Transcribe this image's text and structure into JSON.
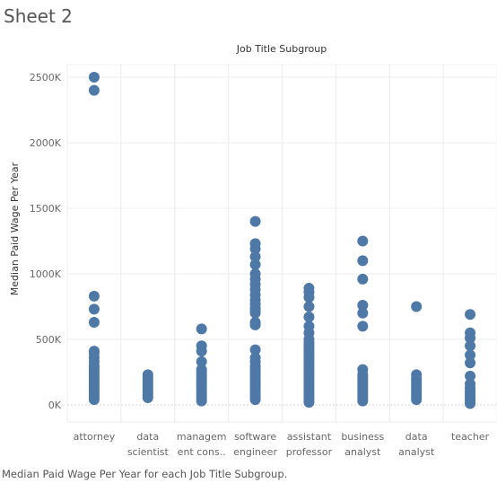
{
  "sheet": {
    "title": "Sheet 2",
    "caption": "Median Paid Wage Per Year for each Job Title Subgroup."
  },
  "chart_data": {
    "type": "scatter",
    "title": "",
    "column_header": "Job Title Subgroup",
    "ylabel": "Median Paid Wage Per Year",
    "ylim": [
      -150000,
      2650000
    ],
    "yticks": [
      0,
      500000,
      1000000,
      1500000,
      2000000,
      2500000
    ],
    "ytick_labels": [
      "0K",
      "500K",
      "1000K",
      "1500K",
      "2000K",
      "2500K"
    ],
    "grid": true,
    "marker_color": "#4e79a7",
    "categories": [
      {
        "label_lines": [
          "attorney"
        ],
        "values": [
          2500000,
          2400000,
          830000,
          730000,
          630000,
          410000,
          390000,
          360000,
          330000,
          300000,
          280000,
          260000,
          240000,
          220000,
          200000,
          180000,
          160000,
          140000,
          120000,
          100000,
          80000,
          60000,
          40000
        ]
      },
      {
        "label_lines": [
          "data",
          "scientist"
        ],
        "values": [
          230000,
          210000,
          190000,
          170000,
          150000,
          130000,
          110000,
          90000,
          70000,
          55000
        ]
      },
      {
        "label_lines": [
          "managem",
          "ent cons.."
        ],
        "values": [
          580000,
          450000,
          410000,
          330000,
          270000,
          250000,
          230000,
          210000,
          190000,
          170000,
          150000,
          130000,
          110000,
          90000,
          70000,
          50000,
          30000
        ]
      },
      {
        "label_lines": [
          "software",
          "engineer"
        ],
        "values": [
          1400000,
          1230000,
          1190000,
          1130000,
          1070000,
          1000000,
          960000,
          920000,
          880000,
          840000,
          800000,
          770000,
          740000,
          720000,
          700000,
          630000,
          610000,
          420000,
          360000,
          330000,
          300000,
          280000,
          260000,
          240000,
          220000,
          200000,
          180000,
          160000,
          140000,
          120000,
          100000,
          80000,
          60000,
          40000
        ]
      },
      {
        "label_lines": [
          "assistant",
          "professor"
        ],
        "values": [
          890000,
          860000,
          820000,
          750000,
          670000,
          600000,
          550000,
          500000,
          480000,
          460000,
          440000,
          420000,
          400000,
          380000,
          360000,
          340000,
          320000,
          300000,
          280000,
          260000,
          240000,
          220000,
          200000,
          180000,
          160000,
          140000,
          120000,
          100000,
          80000,
          60000,
          40000,
          20000
        ]
      },
      {
        "label_lines": [
          "business",
          "analyst"
        ],
        "values": [
          1250000,
          1100000,
          960000,
          760000,
          700000,
          600000,
          270000,
          230000,
          210000,
          190000,
          170000,
          150000,
          130000,
          110000,
          90000,
          70000,
          50000,
          30000
        ]
      },
      {
        "label_lines": [
          "data",
          "analyst"
        ],
        "values": [
          750000,
          230000,
          200000,
          180000,
          160000,
          140000,
          120000,
          100000,
          80000,
          60000,
          40000
        ]
      },
      {
        "label_lines": [
          "teacher"
        ],
        "values": [
          690000,
          550000,
          510000,
          450000,
          380000,
          320000,
          220000,
          160000,
          130000,
          110000,
          90000,
          70000,
          50000,
          30000,
          10000
        ]
      }
    ]
  }
}
